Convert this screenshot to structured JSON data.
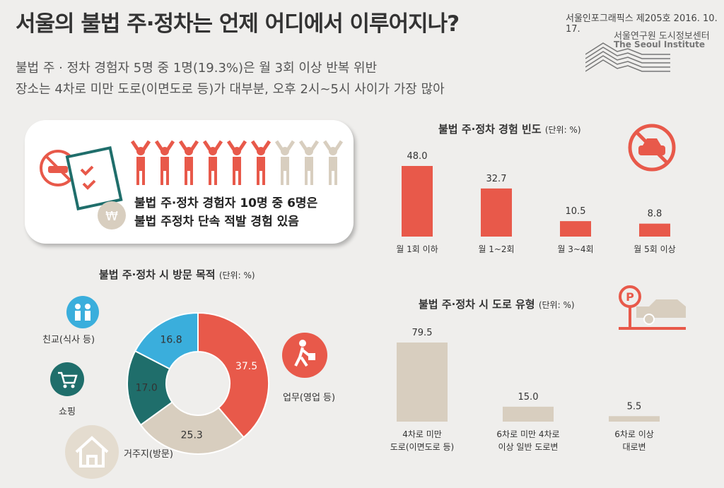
{
  "header": {
    "title": "서울의 불법 주·정차는 언제 어디에서 이루어지나?",
    "subtitle_1": "불법 주 · 정차 경험자 5명 중 1명(19.3%)은 월 3회 이상 반복 위반",
    "subtitle_2": "장소는 4차로 미만 도로(이면도로 등)가 대부분, 오후 2시~5시 사이가 가장 많아",
    "issue": "서울인포그래픽스 제205호 2016. 10. 17.",
    "org_ko": "서울연구원 도시정보센터",
    "org_en": "The Seoul Institute"
  },
  "card": {
    "line1": "불법 주·정차 경험자 10명 중 6명은",
    "line2": "불법 주정차 단속 적발 경험 있음",
    "people_total": 10,
    "people_highlight": 6,
    "icons": [
      "no-parking-car-icon",
      "checklist-icon",
      "won-coin-icon",
      "person-icon"
    ]
  },
  "colors": {
    "red": "#e8594a",
    "beige": "#d8cebf",
    "teal": "#1f6e6b",
    "blue": "#3aaedc"
  },
  "chart_data": [
    {
      "type": "bar",
      "title": "불법 주·정차 경험 빈도",
      "unit": "(단위: %)",
      "categories": [
        "월 1회 이하",
        "월 1~2회",
        "월 3~4회",
        "월 5회 이상"
      ],
      "values": [
        48.0,
        32.7,
        10.5,
        8.8
      ],
      "labels": [
        "48.0",
        "32.7",
        "10.5",
        "8.8"
      ],
      "color": "#e8594a"
    },
    {
      "type": "pie",
      "title": "불법 주·정차 시 방문 목적",
      "unit": "(단위: %)",
      "categories": [
        "업무(영업 등)",
        "거주지(방문)",
        "쇼핑",
        "친교(식사 등)"
      ],
      "values": [
        37.5,
        25.3,
        17.0,
        16.8
      ],
      "labels": [
        "37.5",
        "25.3",
        "17.0",
        "16.8"
      ],
      "colors": [
        "#e8594a",
        "#d8cebf",
        "#1f6e6b",
        "#3aaedc"
      ]
    },
    {
      "type": "bar",
      "title": "불법 주·정차 시 도로 유형",
      "unit": "(단위: %)",
      "categories": [
        "4차로 미만\n도로(이면도로 등)",
        "6차로 미만 4차로\n이상 일반 도로변",
        "6차로 이상\n대로변"
      ],
      "values": [
        79.5,
        15.0,
        5.5
      ],
      "labels": [
        "79.5",
        "15.0",
        "5.5"
      ],
      "color": "#d8cebf"
    }
  ]
}
